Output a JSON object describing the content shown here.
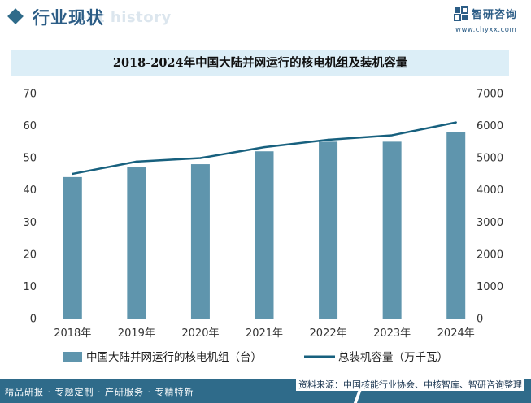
{
  "header": {
    "title": "行业现状",
    "ghost_text": "ent history",
    "brand_name": "智研咨询",
    "brand_url": "www.chyxx.com"
  },
  "chart_data": {
    "type": "bar",
    "title": "2018-2024年中国大陆并网运行的核电机组及装机容量",
    "categories": [
      "2018年",
      "2019年",
      "2020年",
      "2021年",
      "2022年",
      "2023年",
      "2024年"
    ],
    "series": [
      {
        "name": "中国大陆并网运行的核电机组（台）",
        "type": "bar",
        "axis": "left",
        "values": [
          44,
          47,
          48,
          52,
          55,
          55,
          58
        ],
        "color": "#5f95ad"
      },
      {
        "name": "总装机容量（万千瓦）",
        "type": "line",
        "axis": "right",
        "values": [
          4500,
          4880,
          4990,
          5330,
          5560,
          5700,
          6100
        ],
        "color": "#17607e"
      }
    ],
    "y_left": {
      "min": 0,
      "max": 70,
      "ticks": [
        0,
        10,
        20,
        30,
        40,
        50,
        60,
        70
      ]
    },
    "y_right": {
      "min": 0,
      "max": 7000,
      "ticks": [
        0,
        1000,
        2000,
        3000,
        4000,
        5000,
        6000,
        7000
      ]
    },
    "grid": false,
    "legend_position": "bottom"
  },
  "footer": {
    "left_text": "精品研报 · 专题定制 · 产研服务 · 专精特新",
    "source_text": "资料来源：中国核能行业协会、中核智库、智研咨询整理"
  },
  "colors": {
    "brand": "#2f6b8a",
    "title_band": "#dceef7",
    "bar": "#5f95ad",
    "line": "#17607e"
  }
}
